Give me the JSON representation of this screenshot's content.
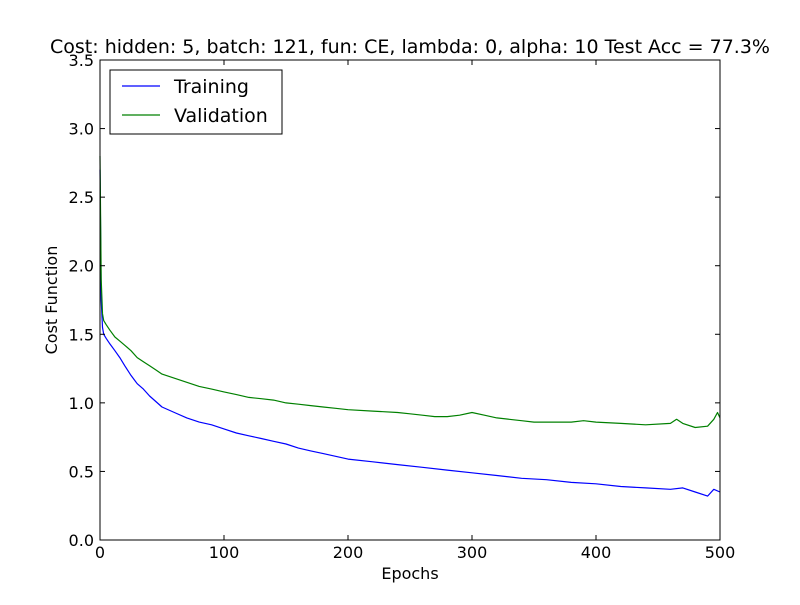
{
  "chart_data": {
    "type": "line",
    "title": "Cost: hidden: 5, batch: 121, fun: CE, lambda: 0, alpha: 10  Test Acc = 77.3%",
    "xlabel": "Epochs",
    "ylabel": "Cost Function",
    "xlim": [
      0,
      500
    ],
    "ylim": [
      0,
      3.5
    ],
    "xticks": [
      "0",
      "100",
      "200",
      "300",
      "400",
      "500"
    ],
    "yticks": [
      "0.0",
      "0.5",
      "1.0",
      "1.5",
      "2.0",
      "2.5",
      "3.0",
      "3.5"
    ],
    "grid": false,
    "legend_position": "top-left",
    "series": [
      {
        "name": "Training",
        "color": "#0000ff",
        "x": [
          0,
          1,
          2,
          3,
          5,
          8,
          12,
          16,
          20,
          25,
          30,
          35,
          40,
          45,
          50,
          60,
          70,
          80,
          90,
          100,
          110,
          120,
          130,
          140,
          150,
          160,
          170,
          180,
          190,
          200,
          220,
          240,
          260,
          280,
          300,
          320,
          340,
          360,
          380,
          400,
          420,
          440,
          460,
          470,
          480,
          490,
          495,
          500
        ],
        "y": [
          2.7,
          1.75,
          1.55,
          1.5,
          1.47,
          1.43,
          1.38,
          1.33,
          1.27,
          1.2,
          1.14,
          1.1,
          1.05,
          1.01,
          0.97,
          0.93,
          0.89,
          0.86,
          0.84,
          0.81,
          0.78,
          0.76,
          0.74,
          0.72,
          0.7,
          0.67,
          0.65,
          0.63,
          0.61,
          0.59,
          0.57,
          0.55,
          0.53,
          0.51,
          0.49,
          0.47,
          0.45,
          0.44,
          0.42,
          0.41,
          0.39,
          0.38,
          0.37,
          0.38,
          0.35,
          0.32,
          0.37,
          0.35
        ]
      },
      {
        "name": "Validation",
        "color": "#008000",
        "x": [
          0,
          1,
          2,
          3,
          5,
          8,
          12,
          16,
          20,
          25,
          30,
          35,
          40,
          45,
          50,
          60,
          70,
          80,
          90,
          100,
          110,
          120,
          130,
          140,
          150,
          160,
          170,
          180,
          190,
          200,
          220,
          240,
          250,
          260,
          270,
          280,
          290,
          300,
          310,
          320,
          330,
          340,
          350,
          360,
          380,
          390,
          400,
          420,
          440,
          460,
          465,
          470,
          480,
          490,
          495,
          498,
          500
        ],
        "y": [
          2.8,
          1.9,
          1.65,
          1.6,
          1.57,
          1.53,
          1.48,
          1.45,
          1.42,
          1.38,
          1.33,
          1.3,
          1.27,
          1.24,
          1.21,
          1.18,
          1.15,
          1.12,
          1.1,
          1.08,
          1.06,
          1.04,
          1.03,
          1.02,
          1.0,
          0.99,
          0.98,
          0.97,
          0.96,
          0.95,
          0.94,
          0.93,
          0.92,
          0.91,
          0.9,
          0.9,
          0.91,
          0.93,
          0.91,
          0.89,
          0.88,
          0.87,
          0.86,
          0.86,
          0.86,
          0.87,
          0.86,
          0.85,
          0.84,
          0.85,
          0.88,
          0.85,
          0.82,
          0.83,
          0.88,
          0.93,
          0.89
        ]
      }
    ]
  }
}
